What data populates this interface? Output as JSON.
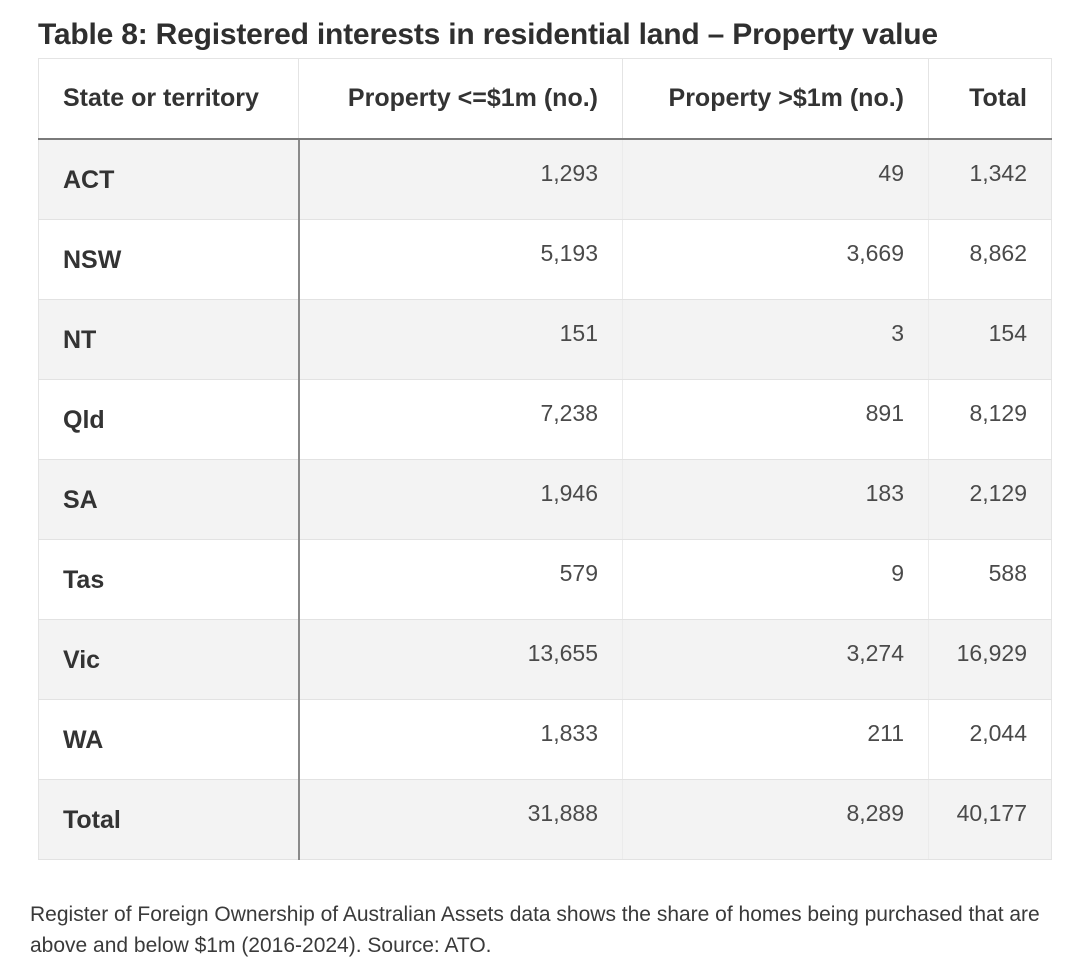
{
  "title": "Table 8: Registered interests in residential land – Property value",
  "table": {
    "headers": [
      "State or territory",
      "Property <=$1m (no.)",
      "Property >$1m (no.)",
      "Total"
    ],
    "rows": [
      {
        "state": "ACT",
        "under_1m": "1,293",
        "over_1m": "49",
        "total": "1,342"
      },
      {
        "state": "NSW",
        "under_1m": "5,193",
        "over_1m": "3,669",
        "total": "8,862"
      },
      {
        "state": "NT",
        "under_1m": "151",
        "over_1m": "3",
        "total": "154"
      },
      {
        "state": "Qld",
        "under_1m": "7,238",
        "over_1m": "891",
        "total": "8,129"
      },
      {
        "state": "SA",
        "under_1m": "1,946",
        "over_1m": "183",
        "total": "2,129"
      },
      {
        "state": "Tas",
        "under_1m": "579",
        "over_1m": "9",
        "total": "588"
      },
      {
        "state": "Vic",
        "under_1m": "13,655",
        "over_1m": "3,274",
        "total": "16,929"
      },
      {
        "state": "WA",
        "under_1m": "1,833",
        "over_1m": "211",
        "total": "2,044"
      },
      {
        "state": "Total",
        "under_1m": "31,888",
        "over_1m": "8,289",
        "total": "40,177"
      }
    ]
  },
  "caption": "Register of Foreign Ownership of Australian Assets data shows the share of homes being purchased that are above and below $1m (2016-2024). Source: ATO."
}
